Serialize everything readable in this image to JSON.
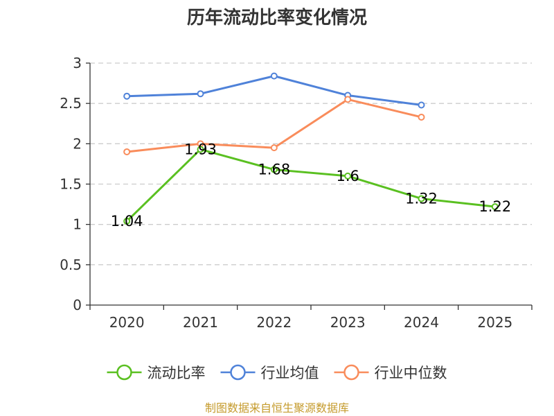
{
  "chart_data": {
    "type": "line",
    "title": "历年流动比率变化情况",
    "categories": [
      "2020",
      "2021",
      "2022",
      "2023",
      "2024",
      "2025"
    ],
    "ylim": [
      0,
      3
    ],
    "yticks": [
      0,
      0.5,
      1,
      1.5,
      2,
      2.5,
      3
    ],
    "ytick_labels": [
      "0",
      "0.5",
      "1",
      "1.5",
      "2",
      "2.5",
      "3"
    ],
    "grid": true,
    "legend_position": "bottom",
    "series": [
      {
        "name": "流动比率",
        "color": "#5ac021",
        "values": [
          1.04,
          1.93,
          1.68,
          1.6,
          1.32,
          1.22
        ],
        "data_labels": [
          "1.04",
          "1.93",
          "1.68",
          "1.6",
          "1.32",
          "1.22"
        ]
      },
      {
        "name": "行业均值",
        "color": "#4f82d9",
        "values": [
          2.59,
          2.62,
          2.84,
          2.6,
          2.48,
          null
        ]
      },
      {
        "name": "行业中位数",
        "color": "#f98c5b",
        "values": [
          1.9,
          2.0,
          1.95,
          2.55,
          2.33,
          null
        ]
      }
    ]
  },
  "source": {
    "text": "制图数据来自恒生聚源数据库",
    "color": "#c59b2d"
  }
}
